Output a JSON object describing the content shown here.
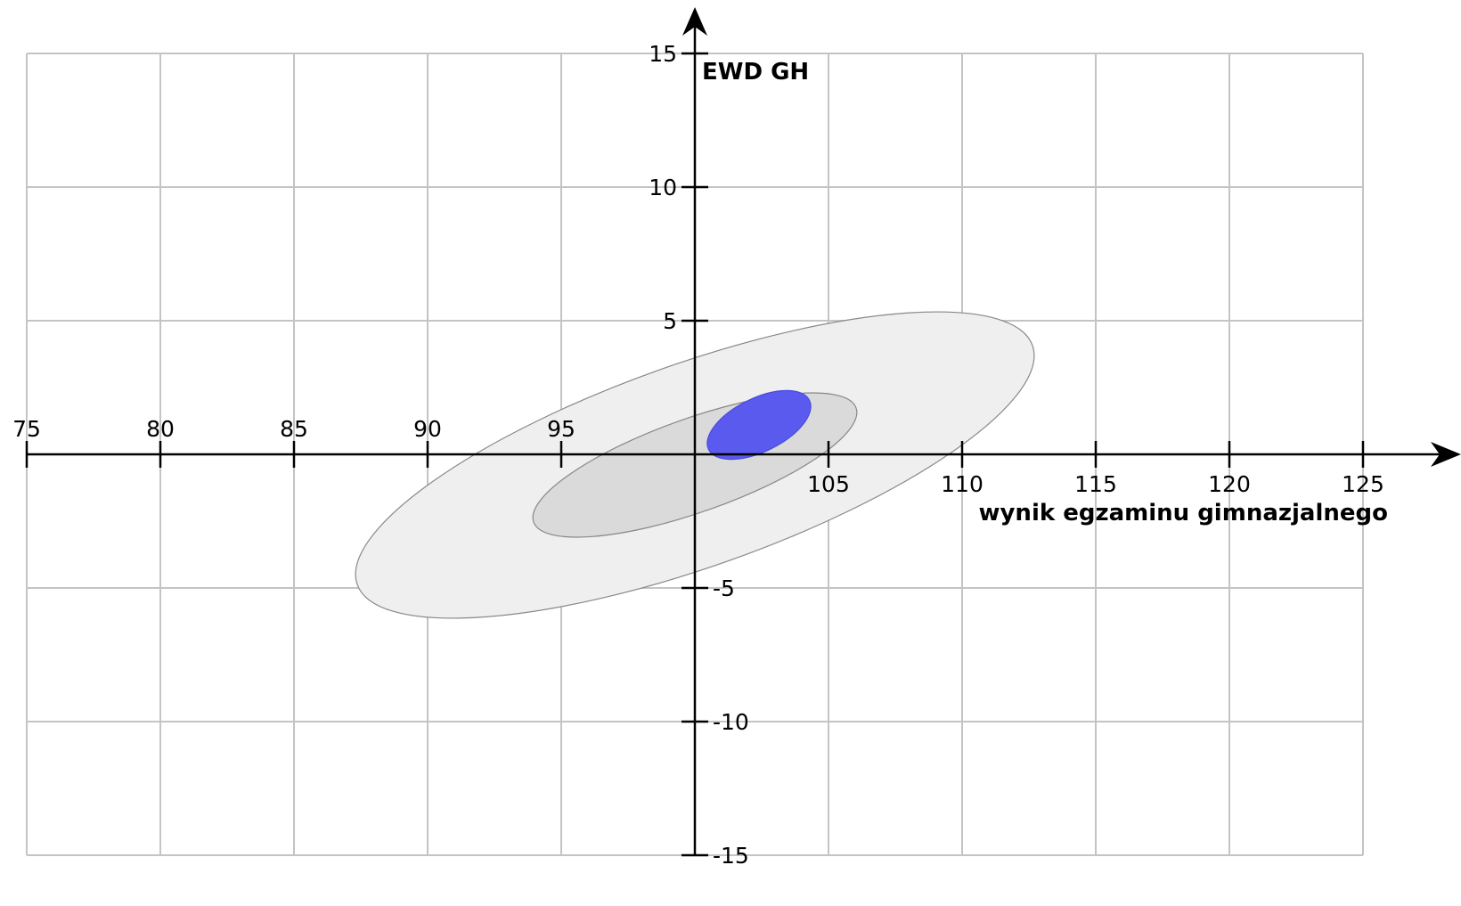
{
  "chart_data": {
    "type": "scatter",
    "xlabel": "wynik egzaminu gimnazjalnego",
    "ylabel": "EWD GH",
    "xlim": [
      75,
      125
    ],
    "ylim": [
      -15,
      15
    ],
    "x_ticks": [
      75,
      80,
      85,
      90,
      95,
      105,
      110,
      115,
      120,
      125
    ],
    "y_ticks": [
      15,
      10,
      5,
      -5,
      -10,
      -15
    ],
    "grid": true,
    "ellipses": [
      {
        "level": "outer",
        "cx": 100,
        "cy": -0.4,
        "rx": 13.4,
        "ry": 3.8,
        "angle_deg": -19.5,
        "fill": "#efefef",
        "stroke": "#888888"
      },
      {
        "level": "middle",
        "cx": 100,
        "cy": -0.4,
        "rx": 6.4,
        "ry": 1.75,
        "angle_deg": -19.5,
        "fill": "#dadada",
        "stroke": "#888888"
      },
      {
        "level": "inner",
        "cx": 102.4,
        "cy": 1.1,
        "rx": 2.1,
        "ry": 1.0,
        "angle_deg": -26,
        "fill": "#5a5aef",
        "stroke": "#4a4ae0"
      }
    ]
  }
}
